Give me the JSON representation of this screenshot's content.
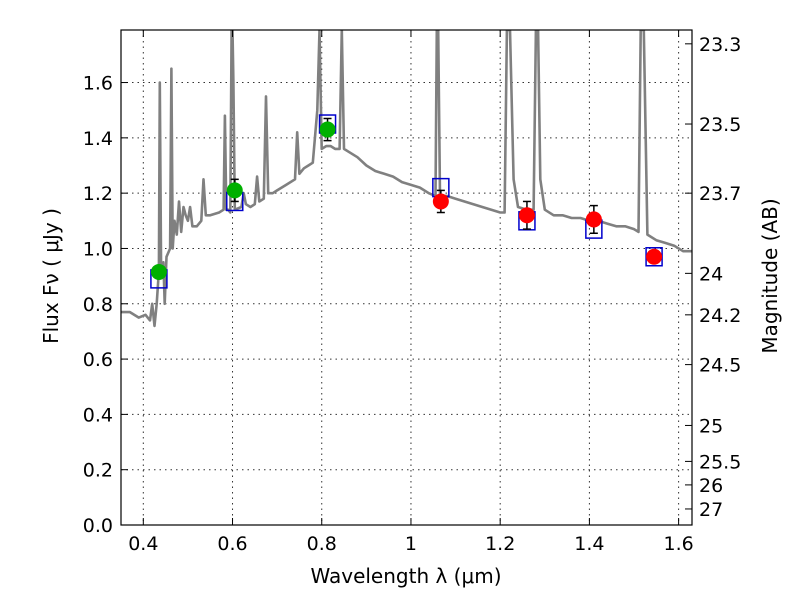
{
  "chart_data": {
    "type": "scatter",
    "title": "",
    "xlabel": "Wavelength  λ (μm)",
    "ylabel": "Flux  Fν  ( μJy )",
    "y2label": "Magnitude (AB)",
    "xlim": [
      0.35,
      1.63
    ],
    "ylim": [
      0.0,
      1.79
    ],
    "grid": true,
    "xticks": [
      0.4,
      0.6,
      0.8,
      1.0,
      1.2,
      1.4,
      1.6
    ],
    "xtick_labels": [
      "0.4",
      "0.6",
      "0.8",
      "1",
      "1.2",
      "1.4",
      "1.6"
    ],
    "yticks": [
      0.0,
      0.2,
      0.4,
      0.6,
      0.8,
      1.0,
      1.2,
      1.4,
      1.6
    ],
    "ytick_labels": [
      "0.0",
      "0.2",
      "0.4",
      "0.6",
      "0.8",
      "1.0",
      "1.2",
      "1.4",
      "1.6"
    ],
    "y2ticks": [
      {
        "label": "23.3",
        "flux": 1.74
      },
      {
        "label": "23.5",
        "flux": 1.45
      },
      {
        "label": "23.7",
        "flux": 1.2
      },
      {
        "label": "24",
        "flux": 0.91
      },
      {
        "label": "24.2",
        "flux": 0.76
      },
      {
        "label": "24.5",
        "flux": 0.58
      },
      {
        "label": "25",
        "flux": 0.36
      },
      {
        "label": "25.5",
        "flux": 0.23
      },
      {
        "label": "26",
        "flux": 0.145
      },
      {
        "label": "27",
        "flux": 0.058
      }
    ],
    "colors": {
      "model": "#808080",
      "optical_points": "#00b000",
      "nir_points": "#ff0000",
      "model_bands": "#0000cc",
      "errorbars": "#000000"
    },
    "series": [
      {
        "type": "line",
        "points": [
          [
            0.35,
            0.77
          ],
          [
            0.37,
            0.77
          ],
          [
            0.39,
            0.75
          ],
          [
            0.405,
            0.76
          ],
          [
            0.415,
            0.74
          ],
          [
            0.42,
            0.8
          ],
          [
            0.425,
            0.72
          ],
          [
            0.43,
            0.8
          ],
          [
            0.435,
            0.92
          ],
          [
            0.437,
            1.6
          ],
          [
            0.44,
            0.92
          ],
          [
            0.445,
            0.95
          ],
          [
            0.448,
            0.8
          ],
          [
            0.452,
            0.97
          ],
          [
            0.46,
            1.0
          ],
          [
            0.463,
            1.65
          ],
          [
            0.466,
            1.0
          ],
          [
            0.47,
            1.1
          ],
          [
            0.475,
            1.05
          ],
          [
            0.48,
            1.17
          ],
          [
            0.485,
            1.06
          ],
          [
            0.49,
            1.15
          ],
          [
            0.495,
            1.12
          ],
          [
            0.5,
            1.1
          ],
          [
            0.505,
            1.15
          ],
          [
            0.51,
            1.08
          ],
          [
            0.52,
            1.08
          ],
          [
            0.53,
            1.1
          ],
          [
            0.535,
            1.25
          ],
          [
            0.54,
            1.12
          ],
          [
            0.55,
            1.12
          ],
          [
            0.57,
            1.13
          ],
          [
            0.58,
            1.14
          ],
          [
            0.583,
            1.48
          ],
          [
            0.586,
            1.14
          ],
          [
            0.59,
            1.14
          ],
          [
            0.595,
            1.13
          ],
          [
            0.598,
            1.79
          ],
          [
            0.6,
            1.79
          ],
          [
            0.602,
            1.6
          ],
          [
            0.605,
            1.14
          ],
          [
            0.62,
            1.15
          ],
          [
            0.625,
            1.2
          ],
          [
            0.63,
            1.16
          ],
          [
            0.64,
            1.15
          ],
          [
            0.65,
            1.16
          ],
          [
            0.655,
            1.26
          ],
          [
            0.66,
            1.17
          ],
          [
            0.67,
            1.18
          ],
          [
            0.675,
            1.55
          ],
          [
            0.68,
            1.2
          ],
          [
            0.69,
            1.2
          ],
          [
            0.7,
            1.21
          ],
          [
            0.72,
            1.23
          ],
          [
            0.74,
            1.25
          ],
          [
            0.745,
            1.42
          ],
          [
            0.75,
            1.27
          ],
          [
            0.76,
            1.29
          ],
          [
            0.77,
            1.3
          ],
          [
            0.78,
            1.31
          ],
          [
            0.79,
            1.5
          ],
          [
            0.795,
            1.79
          ],
          [
            0.8,
            1.36
          ],
          [
            0.81,
            1.37
          ],
          [
            0.82,
            1.37
          ],
          [
            0.83,
            1.36
          ],
          [
            0.84,
            1.36
          ],
          [
            0.845,
            1.79
          ],
          [
            0.85,
            1.36
          ],
          [
            0.86,
            1.35
          ],
          [
            0.88,
            1.33
          ],
          [
            0.9,
            1.3
          ],
          [
            0.92,
            1.28
          ],
          [
            0.94,
            1.27
          ],
          [
            0.96,
            1.26
          ],
          [
            0.98,
            1.24
          ],
          [
            1.0,
            1.23
          ],
          [
            1.02,
            1.22
          ],
          [
            1.04,
            1.2
          ],
          [
            1.055,
            1.19
          ],
          [
            1.058,
            1.79
          ],
          [
            1.061,
            1.79
          ],
          [
            1.065,
            1.19
          ],
          [
            1.08,
            1.19
          ],
          [
            1.1,
            1.18
          ],
          [
            1.12,
            1.17
          ],
          [
            1.14,
            1.16
          ],
          [
            1.16,
            1.15
          ],
          [
            1.18,
            1.14
          ],
          [
            1.2,
            1.13
          ],
          [
            1.21,
            1.13
          ],
          [
            1.215,
            1.79
          ],
          [
            1.222,
            1.79
          ],
          [
            1.23,
            1.25
          ],
          [
            1.24,
            1.15
          ],
          [
            1.26,
            1.14
          ],
          [
            1.275,
            1.14
          ],
          [
            1.28,
            1.79
          ],
          [
            1.285,
            1.79
          ],
          [
            1.29,
            1.25
          ],
          [
            1.3,
            1.14
          ],
          [
            1.32,
            1.12
          ],
          [
            1.34,
            1.12
          ],
          [
            1.36,
            1.11
          ],
          [
            1.38,
            1.11
          ],
          [
            1.4,
            1.1
          ],
          [
            1.42,
            1.1
          ],
          [
            1.44,
            1.09
          ],
          [
            1.46,
            1.08
          ],
          [
            1.48,
            1.08
          ],
          [
            1.5,
            1.07
          ],
          [
            1.51,
            1.06
          ],
          [
            1.515,
            1.79
          ],
          [
            1.522,
            1.79
          ],
          [
            1.53,
            1.05
          ],
          [
            1.55,
            1.03
          ],
          [
            1.57,
            1.02
          ],
          [
            1.59,
            1.01
          ],
          [
            1.61,
            0.99
          ],
          [
            1.63,
            0.99
          ]
        ]
      },
      {
        "type": "scatter",
        "marker": "square",
        "points": [
          [
            0.435,
            0.89
          ],
          [
            0.605,
            1.17
          ],
          [
            0.813,
            1.45
          ],
          [
            1.067,
            1.22
          ],
          [
            1.26,
            1.1
          ],
          [
            1.41,
            1.07
          ],
          [
            1.545,
            0.97
          ]
        ]
      },
      {
        "type": "scatter",
        "marker": "circle",
        "points": [
          {
            "x": 0.435,
            "y": 0.915,
            "err": 0.02
          },
          {
            "x": 0.605,
            "y": 1.21,
            "err": 0.04
          },
          {
            "x": 0.813,
            "y": 1.43,
            "err": 0.04
          }
        ]
      },
      {
        "type": "scatter",
        "marker": "circle",
        "points": [
          {
            "x": 1.067,
            "y": 1.17,
            "err": 0.04
          },
          {
            "x": 1.26,
            "y": 1.12,
            "err": 0.05
          },
          {
            "x": 1.41,
            "y": 1.105,
            "err": 0.05
          },
          {
            "x": 1.545,
            "y": 0.97,
            "err": 0.02
          }
        ]
      }
    ]
  }
}
